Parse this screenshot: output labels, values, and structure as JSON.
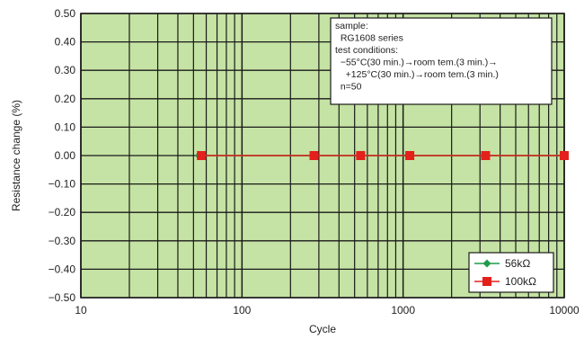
{
  "chart_data": {
    "type": "line",
    "xlabel": "Cycle",
    "ylabel": "Resistance change (%)",
    "x_scale": "log",
    "xlim": [
      10,
      10000
    ],
    "ylim": [
      -0.5,
      0.5
    ],
    "x_ticks": [
      "10",
      "100",
      "1000",
      "10000"
    ],
    "y_ticks": [
      "0.50",
      "0.40",
      "0.30",
      "0.20",
      "0.10",
      "0.00",
      "−0.10",
      "−0.20",
      "−0.30",
      "−0.40",
      "−0.50"
    ],
    "grid": true,
    "background_color": "#c5e3a4",
    "legend_position": "bottom-right",
    "series": [
      {
        "name": "56kΩ",
        "color": "#1f9b4c",
        "marker": "diamond",
        "points": [
          {
            "x": 54,
            "y": 0.0
          },
          {
            "x": 275,
            "y": 0.0
          },
          {
            "x": 540,
            "y": 0.0
          },
          {
            "x": 1070,
            "y": 0.0
          },
          {
            "x": 3200,
            "y": 0.0
          },
          {
            "x": 10000,
            "y": 0.0
          }
        ]
      },
      {
        "name": "100kΩ",
        "color": "#e3201b",
        "marker": "square",
        "points": [
          {
            "x": 56,
            "y": 0.0
          },
          {
            "x": 280,
            "y": 0.0
          },
          {
            "x": 545,
            "y": 0.0
          },
          {
            "x": 1100,
            "y": 0.0
          },
          {
            "x": 3250,
            "y": 0.0
          },
          {
            "x": 10000,
            "y": 0.0
          }
        ]
      }
    ],
    "info_box": [
      "sample:",
      "  RG1608 series",
      "test conditions:",
      "  −55°C(30 min.)→room tem.(3 min.)→",
      "    +125°C(30 min.)→room tem.(3 min.)",
      "  n=50"
    ]
  }
}
